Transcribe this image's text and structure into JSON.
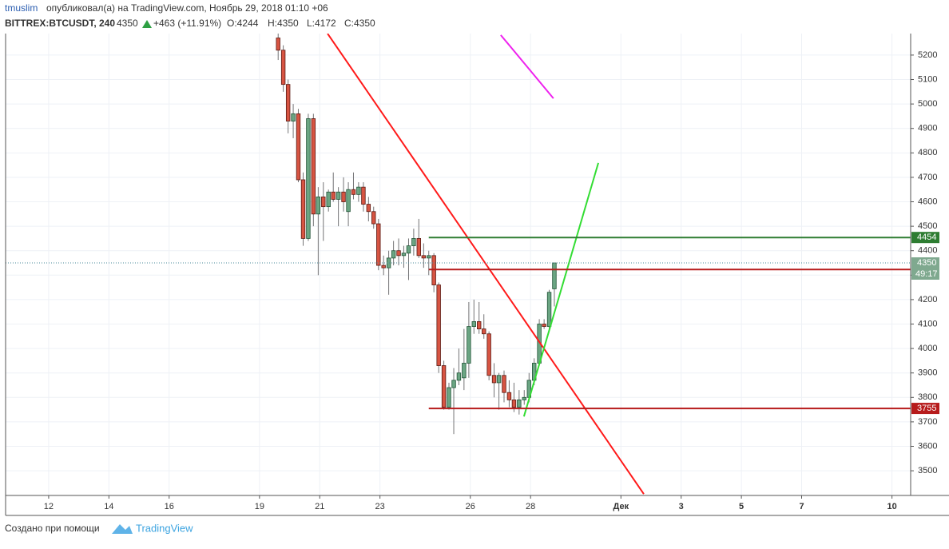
{
  "header": {
    "user": "tmuslim",
    "published": "опубликовал(а) на TradingView.com, Ноябрь 29, 2018 01:10 +06",
    "symbol": "BITTREX:BTCUSDT, 240",
    "last": "4350",
    "change": "+463 (+11.91%)",
    "ohlc_o": "O:4244",
    "ohlc_h": "H:4350",
    "ohlc_l": "L:4172",
    "ohlc_c": "C:4350"
  },
  "chart_data": {
    "type": "candlestick",
    "x": [
      19.62,
      19.79,
      19.95,
      20.12,
      20.29,
      20.45,
      20.62,
      20.79,
      20.95,
      21.12,
      21.29,
      21.45,
      21.62,
      21.79,
      21.95,
      22.12,
      22.29,
      22.45,
      22.62,
      22.79,
      22.95,
      23.12,
      23.29,
      23.45,
      23.62,
      23.79,
      23.95,
      24.12,
      24.29,
      24.45,
      24.62,
      24.79,
      24.95,
      25.12,
      25.29,
      25.45,
      25.62,
      25.79,
      25.95,
      26.12,
      26.29,
      26.45,
      26.62,
      26.79,
      26.95,
      27.12,
      27.29,
      27.45,
      27.62,
      27.79,
      27.95,
      28.12,
      28.29,
      28.45,
      28.62,
      28.79
    ],
    "open": [
      5270,
      5220,
      5080,
      4930,
      4960,
      4690,
      4450,
      4940,
      4550,
      4620,
      4580,
      4640,
      4610,
      4640,
      4560,
      4650,
      4630,
      4660,
      4590,
      4560,
      4510,
      4340,
      4330,
      4370,
      4400,
      4380,
      4390,
      4420,
      4450,
      4380,
      4370,
      4380,
      4260,
      3930,
      3760,
      3840,
      3870,
      3880,
      3940,
      4090,
      4110,
      4080,
      4060,
      3890,
      3860,
      3890,
      3820,
      3790,
      3760,
      3790,
      3800,
      3870,
      3940,
      4100,
      4090,
      4244
    ],
    "high": [
      5290,
      5240,
      5100,
      5000,
      4980,
      4720,
      4960,
      4960,
      4660,
      4680,
      4650,
      4720,
      4660,
      4700,
      4680,
      4720,
      4680,
      4680,
      4620,
      4580,
      4530,
      4380,
      4400,
      4440,
      4450,
      4420,
      4450,
      4490,
      4530,
      4430,
      4400,
      4390,
      4270,
      3950,
      3860,
      3920,
      4000,
      4080,
      4190,
      4200,
      4190,
      4140,
      4070,
      3940,
      3900,
      3910,
      3870,
      3860,
      3830,
      3830,
      3900,
      3960,
      4120,
      4120,
      4240,
      4350
    ],
    "low": [
      5180,
      5050,
      4880,
      4860,
      4680,
      4420,
      4440,
      4500,
      4300,
      4440,
      4560,
      4600,
      4500,
      4560,
      4500,
      4610,
      4600,
      4560,
      4520,
      4490,
      4320,
      4300,
      4220,
      4340,
      4340,
      4330,
      4280,
      4380,
      4370,
      4330,
      4300,
      4230,
      3900,
      3750,
      3750,
      3650,
      3850,
      3830,
      3880,
      4060,
      4060,
      4040,
      3870,
      3800,
      3750,
      3780,
      3760,
      3740,
      3730,
      3770,
      3780,
      3850,
      3930,
      4080,
      4080,
      4172
    ],
    "close": [
      5220,
      5080,
      4930,
      4960,
      4690,
      4450,
      4940,
      4550,
      4620,
      4580,
      4640,
      4610,
      4640,
      4600,
      4650,
      4630,
      4660,
      4590,
      4560,
      4510,
      4340,
      4330,
      4370,
      4400,
      4380,
      4390,
      4420,
      4450,
      4380,
      4370,
      4380,
      4260,
      3930,
      3760,
      3840,
      3870,
      3900,
      3940,
      4090,
      4110,
      4080,
      4060,
      3890,
      3860,
      3890,
      3820,
      3790,
      3760,
      3790,
      3800,
      3870,
      3940,
      4100,
      4090,
      4230,
      4350
    ],
    "up_color": "#6ba583",
    "down_color": "#d75442",
    "xlim": [
      10.57,
      40.62
    ],
    "ylim": [
      3399,
      5288
    ],
    "xticks": [
      12,
      14,
      16,
      19,
      21,
      23,
      26,
      28,
      {
        "value": 31,
        "label": "Дек"
      },
      {
        "value": 33,
        "label": "3"
      },
      {
        "value": 35,
        "label": "5"
      },
      {
        "value": 37,
        "label": "7"
      },
      {
        "value": 40,
        "label": "10"
      }
    ],
    "yticks": [
      3500,
      3600,
      3700,
      3800,
      3900,
      4000,
      4100,
      4200,
      4300,
      4400,
      4500,
      4600,
      4700,
      4800,
      4900,
      5000,
      5100,
      5200
    ],
    "grid": true,
    "levels": [
      {
        "value": 4454,
        "color": "#2e7d32"
      },
      {
        "value": 4323,
        "color": "#b71c1c"
      },
      {
        "value": 3755,
        "color": "#b71c1c"
      }
    ],
    "last_price": {
      "value": 4350,
      "countdown": "49:17",
      "color": "#6ba583"
    },
    "lines": [
      {
        "color": "#ff1a1a",
        "points": [
          [
            21.26,
            5288
          ],
          [
            31.76,
            3405
          ]
        ]
      },
      {
        "color": "#33dd33",
        "points": [
          [
            27.78,
            3722
          ],
          [
            30.25,
            4759
          ]
        ]
      },
      {
        "color": "#ee22ee",
        "points": [
          [
            27.01,
            5282
          ],
          [
            28.76,
            5023
          ]
        ]
      }
    ]
  },
  "footer": {
    "made_with": "Создано при помощи",
    "brand": "TradingView"
  }
}
